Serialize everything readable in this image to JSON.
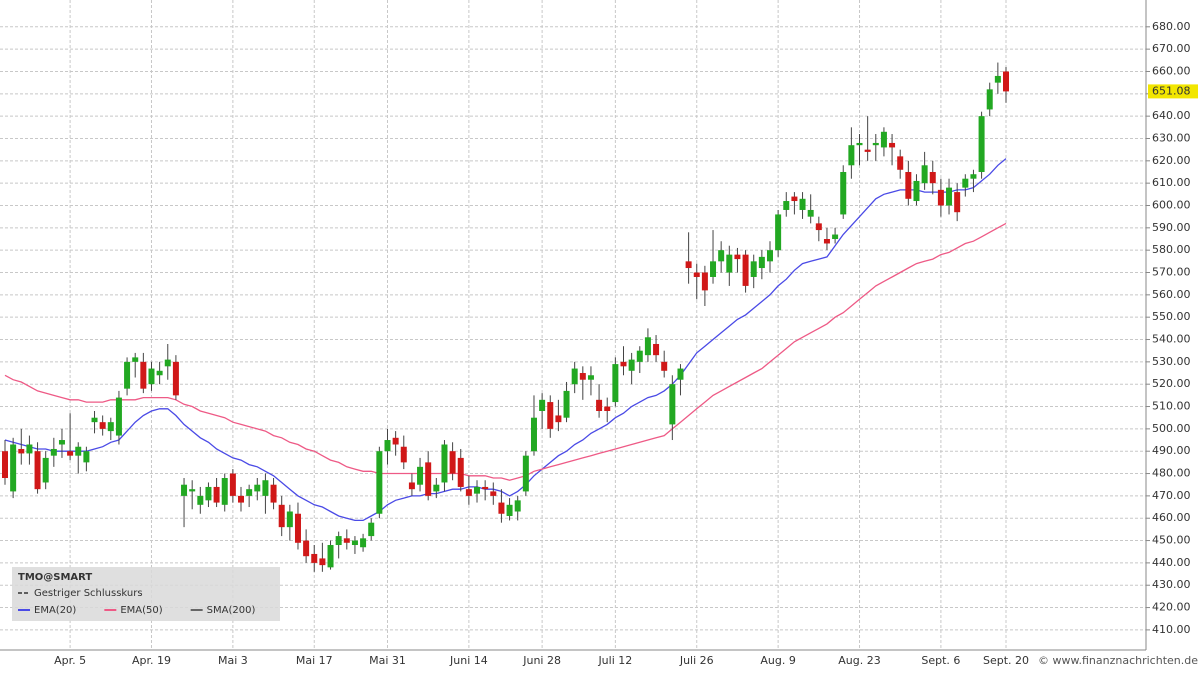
{
  "chart_data": {
    "type": "candlestick",
    "title": "TMO@SMART",
    "watermark": "© www.finanznachrichten.de",
    "categories": [
      null,
      null,
      null,
      null,
      null,
      null,
      null,
      null,
      "Apr. 5",
      null,
      null,
      null,
      null,
      null,
      null,
      null,
      null,
      null,
      "Apr. 19",
      null,
      null,
      null,
      null,
      null,
      null,
      null,
      null,
      null,
      "Mai 3",
      null,
      null,
      null,
      null,
      null,
      null,
      null,
      null,
      null,
      "Mai 17",
      null,
      null,
      null,
      null,
      null,
      null,
      null,
      null,
      "Mai 31",
      null,
      null,
      null,
      null,
      null,
      null,
      null,
      null,
      null,
      "Juni 14",
      null,
      null,
      null,
      null,
      null,
      null,
      null,
      null,
      "Juni 28",
      null,
      null,
      null,
      null,
      null,
      null,
      null,
      null,
      "Juli 12",
      null,
      null,
      null,
      null,
      null,
      null,
      null,
      null,
      null,
      "Juli 26",
      null,
      null,
      null,
      null,
      null,
      null,
      null,
      null,
      null,
      "Aug. 9",
      null,
      null,
      null,
      null,
      null,
      null,
      null,
      null,
      null,
      "Aug. 23",
      null,
      null,
      null,
      null,
      null,
      null,
      null,
      null,
      null,
      "Sept. 6",
      null,
      null,
      null,
      null,
      null,
      null,
      null,
      "Sept. 20"
    ],
    "open": [
      490,
      472,
      491,
      489,
      490,
      476,
      488,
      493,
      490,
      488,
      485,
      503,
      503,
      499,
      497,
      518,
      530,
      530,
      520,
      524,
      528,
      530,
      470,
      472,
      466,
      468,
      474,
      466,
      480,
      470,
      470,
      472,
      470,
      475,
      466,
      456,
      462,
      450,
      444,
      442,
      438,
      448,
      451,
      448,
      447,
      452,
      462,
      490,
      496,
      492,
      476,
      475,
      485,
      472,
      476,
      490,
      487,
      473,
      471,
      474,
      472,
      467,
      461,
      463,
      472,
      490,
      508,
      512,
      506,
      505,
      520,
      525,
      522,
      513,
      510,
      512,
      530,
      526,
      530,
      533,
      538,
      530,
      502,
      522,
      575,
      570,
      570,
      568,
      575,
      570,
      578,
      578,
      568,
      572,
      575,
      580,
      598,
      604,
      598,
      595,
      592,
      585,
      585,
      596,
      618,
      627,
      625,
      627,
      626,
      628,
      622,
      615,
      602,
      610,
      615,
      607,
      600,
      606,
      608,
      612,
      615,
      643,
      655,
      660
    ],
    "high": [
      495,
      496,
      500,
      497,
      494,
      490,
      496,
      500,
      507,
      494,
      492,
      508,
      506,
      505,
      517,
      532,
      534,
      534,
      530,
      530,
      538,
      533,
      478,
      477,
      474,
      476,
      478,
      480,
      482,
      474,
      475,
      478,
      480,
      478,
      470,
      466,
      467,
      455,
      448,
      449,
      450,
      454,
      455,
      452,
      453,
      460,
      492,
      500,
      499,
      497,
      480,
      487,
      490,
      478,
      495,
      494,
      491,
      479,
      477,
      477,
      476,
      473,
      469,
      470,
      490,
      515,
      516,
      515,
      513,
      521,
      530,
      528,
      528,
      520,
      514,
      532,
      537,
      534,
      537,
      545,
      542,
      535,
      524,
      529,
      588,
      574,
      573,
      589,
      584,
      582,
      581,
      580,
      578,
      580,
      584,
      598,
      606,
      606,
      606,
      605,
      595,
      590,
      590,
      618,
      635,
      632,
      640,
      632,
      635,
      632,
      625,
      620,
      614,
      624,
      620,
      612,
      612,
      610,
      614,
      616,
      642,
      655,
      664,
      662
    ],
    "low": [
      475,
      469,
      484,
      484,
      471,
      473,
      483,
      487,
      486,
      480,
      481,
      498,
      497,
      495,
      493,
      515,
      523,
      516,
      517,
      520,
      522,
      513,
      456,
      464,
      462,
      465,
      465,
      463,
      467,
      463,
      465,
      468,
      462,
      464,
      452,
      450,
      446,
      440,
      436,
      436,
      437,
      442,
      446,
      444,
      445,
      450,
      460,
      484,
      488,
      482,
      470,
      472,
      468,
      469,
      472,
      477,
      472,
      466,
      467,
      468,
      466,
      458,
      459,
      459,
      470,
      488,
      500,
      496,
      499,
      503,
      516,
      513,
      515,
      505,
      503,
      510,
      524,
      520,
      525,
      530,
      530,
      523,
      495,
      515,
      565,
      558,
      555,
      565,
      570,
      564,
      570,
      561,
      563,
      567,
      570,
      577,
      595,
      596,
      594,
      592,
      584,
      580,
      583,
      594,
      612,
      618,
      620,
      620,
      622,
      618,
      612,
      600,
      600,
      607,
      605,
      595,
      596,
      593,
      604,
      606,
      612,
      640,
      650,
      646
    ],
    "close": [
      478,
      493,
      489,
      493,
      473,
      487,
      491,
      495,
      488,
      492,
      490,
      505,
      500,
      503,
      514,
      530,
      532,
      518,
      527,
      526,
      531,
      515,
      475,
      473,
      470,
      474,
      467,
      478,
      470,
      467,
      473,
      475,
      477,
      467,
      456,
      463,
      449,
      443,
      440,
      439,
      448,
      452,
      449,
      450,
      451,
      458,
      490,
      495,
      493,
      485,
      473,
      483,
      470,
      475,
      493,
      480,
      474,
      470,
      474,
      473,
      470,
      462,
      466,
      468,
      488,
      505,
      513,
      500,
      503,
      517,
      527,
      522,
      524,
      508,
      508,
      529,
      528,
      531,
      535,
      541,
      533,
      526,
      520,
      527,
      572,
      568,
      562,
      575,
      580,
      578,
      576,
      564,
      575,
      577,
      580,
      596,
      602,
      602,
      603,
      598,
      589,
      583,
      587,
      615,
      627,
      628,
      624,
      628,
      633,
      626,
      616,
      603,
      611,
      618,
      610,
      600,
      608,
      597,
      612,
      614,
      640,
      652,
      658,
      651.08
    ],
    "up_color": "#22a822",
    "down_color": "#d01818",
    "last_price": 651.08,
    "series": [
      {
        "name": "EMA(20)",
        "color": "#4a4ae6",
        "values": [
          495,
          494,
          493,
          492,
          491,
          491,
          490,
          490,
          490,
          490,
          490,
          491,
          492,
          494,
          495,
          499,
          503,
          506,
          508,
          509,
          509,
          506,
          502,
          499,
          496,
          494,
          491,
          489,
          487,
          486,
          484,
          483,
          481,
          479,
          476,
          473,
          470,
          468,
          466,
          465,
          463,
          461,
          460,
          459,
          459,
          461,
          463,
          466,
          468,
          469,
          470,
          470,
          471,
          471,
          472,
          473,
          473,
          474,
          474,
          473,
          473,
          472,
          470,
          472,
          475,
          479,
          482,
          485,
          488,
          490,
          493,
          495,
          498,
          500,
          502,
          505,
          507,
          510,
          512,
          514,
          515,
          517,
          520,
          524,
          529,
          534,
          537,
          540,
          543,
          546,
          549,
          551,
          554,
          557,
          560,
          564,
          567,
          571,
          574,
          575,
          576,
          577,
          582,
          587,
          591,
          595,
          599,
          603,
          605,
          606,
          607,
          607,
          607,
          606,
          606,
          606,
          606,
          607,
          607,
          608,
          611,
          614,
          618,
          621
        ]
      },
      {
        "name": "EMA(50)",
        "color": "#ee5a86",
        "values": [
          524,
          522,
          521,
          519,
          517,
          516,
          515,
          514,
          513,
          513,
          512,
          512,
          512,
          513,
          513,
          513,
          513,
          514,
          514,
          514,
          514,
          513,
          511,
          510,
          508,
          507,
          506,
          505,
          503,
          502,
          501,
          500,
          499,
          497,
          496,
          494,
          493,
          491,
          490,
          488,
          486,
          485,
          483,
          482,
          481,
          481,
          480,
          480,
          480,
          480,
          480,
          480,
          480,
          480,
          480,
          480,
          480,
          479,
          479,
          479,
          478,
          478,
          477,
          478,
          479,
          481,
          482,
          483,
          484,
          485,
          486,
          487,
          488,
          489,
          490,
          491,
          492,
          493,
          494,
          495,
          496,
          497,
          500,
          503,
          506,
          509,
          512,
          515,
          517,
          519,
          521,
          523,
          525,
          527,
          530,
          533,
          536,
          539,
          541,
          543,
          545,
          547,
          550,
          552,
          555,
          558,
          561,
          564,
          566,
          568,
          570,
          572,
          574,
          575,
          576,
          578,
          579,
          581,
          583,
          584,
          586,
          588,
          590,
          592
        ]
      }
    ],
    "legend_extra": [
      {
        "name": "Gestriger Schlusskurs",
        "color": "#333333"
      },
      {
        "name": "SMA(200)",
        "color": "#666666"
      }
    ],
    "ylim": [
      401,
      692
    ],
    "yticks": [
      {
        "value": 410,
        "label": "410.00"
      },
      {
        "value": 420,
        "label": "420.00"
      },
      {
        "value": 430,
        "label": "430.00"
      },
      {
        "value": 440,
        "label": "440.00"
      },
      {
        "value": 450,
        "label": "450.00"
      },
      {
        "value": 460,
        "label": "460.00"
      },
      {
        "value": 470,
        "label": "470.00"
      },
      {
        "value": 480,
        "label": "480.00"
      },
      {
        "value": 490,
        "label": "490.00"
      },
      {
        "value": 500,
        "label": "500.00"
      },
      {
        "value": 510,
        "label": "510.00"
      },
      {
        "value": 520,
        "label": "520.00"
      },
      {
        "value": 530,
        "label": "530.00"
      },
      {
        "value": 540,
        "label": "540.00"
      },
      {
        "value": 550,
        "label": "550.00"
      },
      {
        "value": 560,
        "label": "560.00"
      },
      {
        "value": 570,
        "label": "570.00"
      },
      {
        "value": 580,
        "label": "580.00"
      },
      {
        "value": 590,
        "label": "590.00"
      },
      {
        "value": 600,
        "label": "600.00"
      },
      {
        "value": 610,
        "label": "610.00"
      },
      {
        "value": 620,
        "label": "620.00"
      },
      {
        "value": 630,
        "label": "630.00"
      },
      {
        "value": 640,
        "label": "640.00"
      },
      {
        "value": 650,
        "label": "650.00"
      },
      {
        "value": 660,
        "label": "660.00"
      },
      {
        "value": 670,
        "label": "670.00"
      },
      {
        "value": 680,
        "label": "680.00"
      }
    ],
    "grid": true
  }
}
